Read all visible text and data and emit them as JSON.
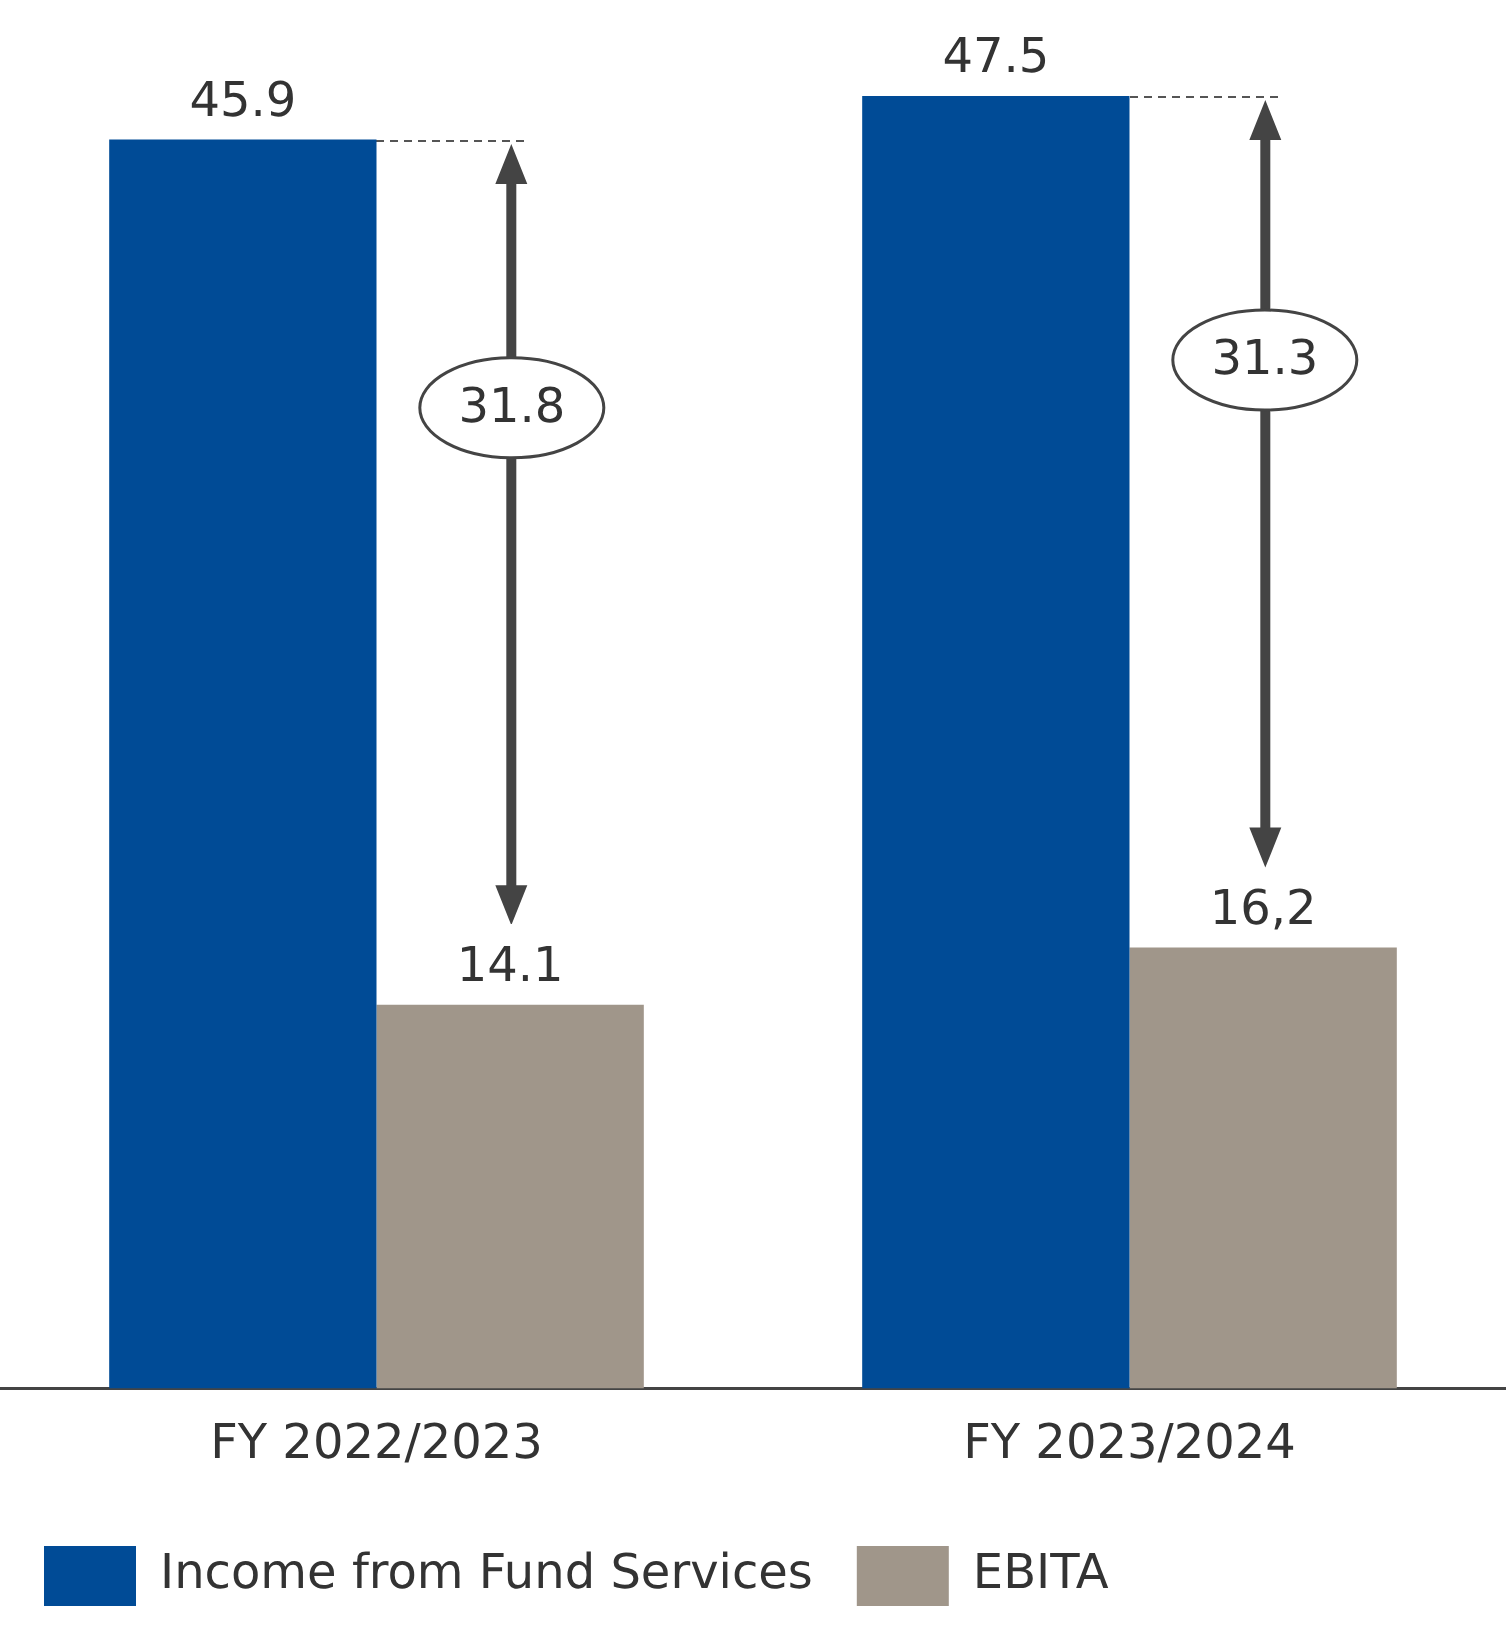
{
  "chart_data": {
    "type": "bar",
    "categories": [
      "FY 2022/2023",
      "FY 2023/2024"
    ],
    "series": [
      {
        "name": "Income from Fund Services",
        "color": "#004b96",
        "values": [
          45.9,
          47.5
        ],
        "value_labels": [
          "45.9",
          "47.5"
        ]
      },
      {
        "name": "EBITA",
        "color": "#a0968a",
        "values": [
          14.1,
          16.2
        ],
        "value_labels": [
          "14.1",
          "16,2"
        ]
      }
    ],
    "annotations": [
      "31.8",
      "31.3"
    ],
    "legend": "bottom left",
    "grid": false
  }
}
